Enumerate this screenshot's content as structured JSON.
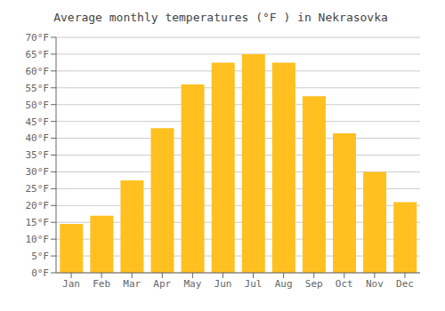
{
  "chart_data": {
    "type": "bar",
    "title": "Average monthly temperatures (°F ) in Nekrasovka",
    "categories": [
      "Jan",
      "Feb",
      "Mar",
      "Apr",
      "May",
      "Jun",
      "Jul",
      "Aug",
      "Sep",
      "Oct",
      "Nov",
      "Dec"
    ],
    "values": [
      14.5,
      17.0,
      27.5,
      43.0,
      56.0,
      62.5,
      65.0,
      62.5,
      52.5,
      41.5,
      30.0,
      21.0
    ],
    "color": "#FFC020",
    "ylim": [
      0,
      70
    ],
    "yticks": [
      {
        "value": 0,
        "label": "0°F"
      },
      {
        "value": 5,
        "label": "5°F"
      },
      {
        "value": 10,
        "label": "10°F"
      },
      {
        "value": 15,
        "label": "15°F"
      },
      {
        "value": 20,
        "label": "20°F"
      },
      {
        "value": 25,
        "label": "25°F"
      },
      {
        "value": 30,
        "label": "30°F"
      },
      {
        "value": 35,
        "label": "35°F"
      },
      {
        "value": 40,
        "label": "40°F"
      },
      {
        "value": 45,
        "label": "45°F"
      },
      {
        "value": 50,
        "label": "50°F"
      },
      {
        "value": 55,
        "label": "55°F"
      },
      {
        "value": 60,
        "label": "60°F"
      },
      {
        "value": 65,
        "label": "65°F"
      },
      {
        "value": 70,
        "label": "70°F"
      }
    ],
    "grid": true
  }
}
